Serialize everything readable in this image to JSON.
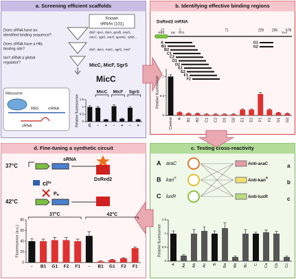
{
  "panel_a": {
    "title": "a. Screening efficient scaffolds",
    "known": [
      "Known",
      "sRNAs (101)"
    ],
    "questions": [
      [
        "Does sRNA have an",
        "identified binding sequence?"
      ],
      [
        "Does sRNA have a Hfq",
        "binding site?"
      ],
      [
        "Isn't sRNA a global",
        "regulator?"
      ]
    ],
    "lists": [
      [
        "dicF, rprA, dsrA, gcvB, oxyS,",
        "micC, sgrS, micF, spot42, ryhB..."
      ],
      [
        "dicF, dsrA, micC, sgrS, micF"
      ],
      [
        "MicC, MicF, SgrS"
      ]
    ],
    "selected": "MicC",
    "diagram": {
      "ribosome": "Ribosome",
      "rbs": "RBS",
      "mrna": "mRNA",
      "srna": "sRNA"
    }
  },
  "panel_b": {
    "title": "b. Identifying effective binding regions",
    "mrna": "DsRed2 mRNA",
    "positions": [
      "-11",
      "1",
      "71",
      "229",
      "256",
      "678"
    ],
    "features": [
      "RBS",
      "SD",
      "ATG",
      "TAA"
    ],
    "regions": [
      "A",
      "B1",
      "B2",
      "C1",
      "C2",
      "D1",
      "D2",
      "E1",
      "E2",
      "F1",
      "F2",
      "G1",
      "G2"
    ]
  },
  "panel_c": {
    "title": "c. Testing cross-reactivity",
    "constructs": [
      {
        "letter": "A",
        "gene": "araC"
      },
      {
        "letter": "B",
        "gene": "kan",
        "sup": "R"
      },
      {
        "letter": "C",
        "gene": "luxR"
      }
    ],
    "antis": [
      {
        "name": "Anti-araC",
        "letter": "a"
      },
      {
        "name": "Anti-kan",
        "sup": "R",
        "letter": "b"
      },
      {
        "name": "Anti-luxR",
        "letter": "c"
      }
    ]
  },
  "panel_d": {
    "title": "d. Fine-tuning a synthetic circuit",
    "temps": [
      "37°C",
      "42°C"
    ],
    "srna": "sRNA",
    "reporter": "DsRed2",
    "repressor": {
      "main": "cI",
      "sup": "ts"
    },
    "promoter": {
      "main": "P",
      "sub": "R"
    }
  },
  "chart_data": [
    {
      "type": "bar",
      "y_label": "Relative fluorescence",
      "categories": [
        "C",
        "-",
        "+",
        "-",
        "+",
        "-",
        "+"
      ],
      "group_labels": [
        "MicC",
        "MicF",
        "SgrS"
      ],
      "values": [
        1.0,
        0.95,
        0.15,
        1.05,
        0.2,
        0.95,
        0.15
      ],
      "errors": [
        0.08,
        0.08,
        0.02,
        0.1,
        0.03,
        0.08,
        0.02
      ],
      "colors": [
        "#111111",
        "#111111",
        "#111111",
        "#111111",
        "#111111",
        "#111111",
        "#111111"
      ],
      "ylim": [
        0,
        1.5
      ],
      "yticks": [
        0,
        0.5,
        1,
        1.5
      ]
    },
    {
      "type": "bar",
      "y_label": "Relative fluorescence",
      "categories": [
        "Control",
        "A",
        "B1",
        "B2",
        "C1",
        "C2",
        "D1",
        "D2",
        "E1",
        "E2",
        "F1",
        "F2",
        "G1",
        "G2"
      ],
      "values": [
        1.0,
        0.08,
        0.05,
        0.05,
        0.03,
        0.03,
        0.03,
        0.03,
        0.15,
        0.15,
        0.55,
        0.15,
        0.07,
        0.05
      ],
      "errors": [
        0.05,
        0.01,
        0.01,
        0.01,
        0.01,
        0.01,
        0.01,
        0.01,
        0.02,
        0.02,
        0.04,
        0.02,
        0.01,
        0.01
      ],
      "colors": [
        "#111111",
        "#e03030",
        "#e03030",
        "#e03030",
        "#e03030",
        "#e03030",
        "#e03030",
        "#e03030",
        "#e03030",
        "#e03030",
        "#e03030",
        "#e03030",
        "#e03030",
        "#e03030"
      ],
      "ylim": [
        0,
        1.2
      ],
      "yticks": [
        0,
        0.5,
        1
      ]
    },
    {
      "type": "bar",
      "y_label": "Relative fluorescence",
      "categories": [
        "A",
        "Aa",
        "Ab",
        "Ac",
        "B",
        "Ba",
        "Bb",
        "Bc",
        "C",
        "Ca",
        "Cb",
        "Cc"
      ],
      "values": [
        1.0,
        0.2,
        1.0,
        1.1,
        1.0,
        1.2,
        0.15,
        1.0,
        1.0,
        1.05,
        1.0,
        0.15
      ],
      "errors": [
        0.1,
        0.03,
        0.15,
        0.15,
        0.1,
        0.2,
        0.03,
        0.15,
        0.05,
        0.08,
        0.08,
        0.03
      ],
      "colors": [
        "#111111",
        "#555555",
        "#555555",
        "#555555",
        "#111111",
        "#555555",
        "#555555",
        "#555555",
        "#111111",
        "#555555",
        "#555555",
        "#555555"
      ],
      "ylim": [
        0,
        1.5
      ],
      "yticks": [
        0,
        0.5,
        1,
        1.5
      ]
    },
    {
      "type": "bar",
      "y_label": "Fluorescence (a.u.)",
      "categories": [
        "-",
        "B1",
        "G1",
        "F2",
        "F1",
        "-",
        "B1",
        "G1",
        "F2",
        "F1"
      ],
      "group_labels": [
        "37°C",
        "42°C"
      ],
      "values": [
        40,
        40,
        42,
        42,
        40,
        50,
        2,
        5,
        8,
        27
      ],
      "errors": [
        5,
        4,
        5,
        5,
        4,
        8,
        1,
        1,
        1,
        2
      ],
      "colors": [
        "#111111",
        "#e03030",
        "#e03030",
        "#e03030",
        "#e03030",
        "#111111",
        "#e03030",
        "#e03030",
        "#e03030",
        "#e03030"
      ],
      "ylim": [
        0,
        80
      ],
      "yticks": [
        0,
        20,
        40,
        60,
        80
      ]
    }
  ]
}
